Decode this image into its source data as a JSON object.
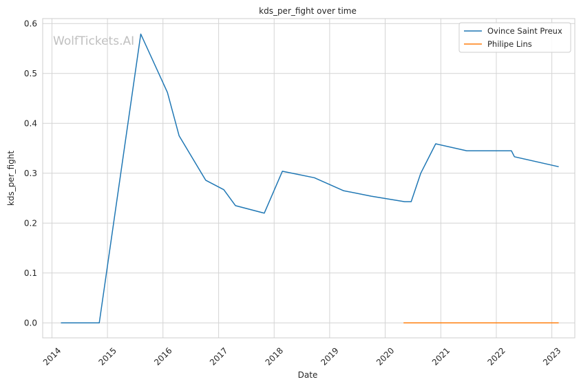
{
  "chart_data": {
    "type": "line",
    "title": "kds_per_fight over time",
    "xlabel": "Date",
    "ylabel": "kds_per_fight",
    "watermark": "WolfTickets.AI",
    "xlim": [
      "2013-11-01",
      "2023-06-01"
    ],
    "ylim": [
      -0.03,
      0.61
    ],
    "x_ticks": [
      "2014",
      "2015",
      "2016",
      "2017",
      "2018",
      "2019",
      "2020",
      "2021",
      "2022",
      "2023"
    ],
    "y_ticks": [
      "0.0",
      "0.1",
      "0.2",
      "0.3",
      "0.4",
      "0.5",
      "0.6"
    ],
    "grid": true,
    "legend_position": "top-right",
    "series": [
      {
        "name": "Ovince Saint Preux",
        "color": "#1f77b4",
        "x": [
          "2014-03-01",
          "2014-11-08",
          "2015-08-08",
          "2016-01-30",
          "2016-04-16",
          "2016-10-08",
          "2017-02-04",
          "2017-04-22",
          "2017-10-28",
          "2018-02-24",
          "2018-09-22",
          "2019-04-01",
          "2019-10-01",
          "2020-05-08",
          "2020-06-20",
          "2020-08-22",
          "2020-11-28",
          "2021-06-20",
          "2022-04-10",
          "2022-04-30",
          "2023-02-15"
        ],
        "y": [
          0.0,
          0.0,
          0.579,
          0.462,
          0.375,
          0.286,
          0.267,
          0.235,
          0.22,
          0.304,
          0.291,
          0.265,
          0.254,
          0.243,
          0.243,
          0.3,
          0.359,
          0.345,
          0.345,
          0.333,
          0.313
        ]
      },
      {
        "name": "Philipe Lins",
        "color": "#ff7f0e",
        "x": [
          "2020-05-01",
          "2023-02-15"
        ],
        "y": [
          0.0,
          0.0
        ]
      }
    ]
  }
}
